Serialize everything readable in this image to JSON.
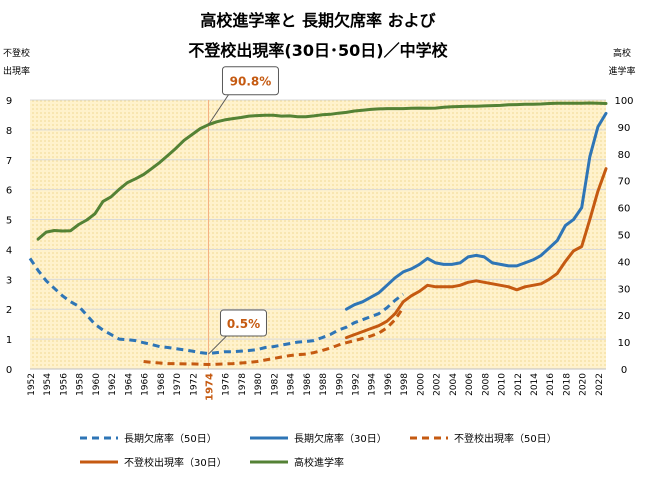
{
  "chart_data": {
    "type": "line",
    "title_line1": "高校進学率と 長期欠席率 および",
    "title_line2": "不登校出現率(30日･50日)／中学校",
    "left_axis_label": [
      "不登校",
      "出現率"
    ],
    "right_axis_label": [
      "高校",
      "進学率"
    ],
    "y_left": {
      "min": 0,
      "max": 9,
      "ticks": [
        "0",
        "1",
        "2",
        "3",
        "4",
        "5",
        "6",
        "7",
        "8",
        "9"
      ]
    },
    "y_right": {
      "min": 0,
      "max": 100,
      "ticks": [
        "0",
        "10",
        "20",
        "30",
        "40",
        "50",
        "60",
        "70",
        "80",
        "90",
        "100"
      ]
    },
    "x_range": [
      1952,
      2023
    ],
    "x_ticks": [
      "1952",
      "1954",
      "1956",
      "1958",
      "1960",
      "1962",
      "1964",
      "1966",
      "1968",
      "1970",
      "1972",
      "1974",
      "1976",
      "1978",
      "1980",
      "1982",
      "1984",
      "1986",
      "1988",
      "1990",
      "1992",
      "1994",
      "1996",
      "1998",
      "2000",
      "2002",
      "2004",
      "2006",
      "2008",
      "2010",
      "2012",
      "2014",
      "2016",
      "2018",
      "2020",
      "2022"
    ],
    "highlight_year": "1974",
    "annotations": [
      {
        "text": "90.8%",
        "year": 1974,
        "axis": "right",
        "value": 90.8,
        "color": "#c55a11"
      },
      {
        "text": "0.5%",
        "year": 1974,
        "axis": "left",
        "value": 0.5,
        "color": "#c55a11"
      }
    ],
    "grid": true,
    "legend_placement": "bottom",
    "series": [
      {
        "name": "長期欠席率（50日）",
        "color": "#2e75b6",
        "dashed": true,
        "axis": "left",
        "x": [
          1952,
          1953,
          1954,
          1955,
          1956,
          1957,
          1958,
          1959,
          1960,
          1961,
          1962,
          1963,
          1964,
          1965,
          1966,
          1967,
          1968,
          1969,
          1970,
          1971,
          1972,
          1973,
          1974,
          1975,
          1976,
          1977,
          1978,
          1979,
          1980,
          1981,
          1982,
          1983,
          1984,
          1985,
          1986,
          1987,
          1988,
          1989,
          1990,
          1991,
          1992,
          1993,
          1994,
          1995,
          1996,
          1997,
          1998
        ],
        "y": [
          3.7,
          3.3,
          2.95,
          2.7,
          2.45,
          2.25,
          2.1,
          1.8,
          1.5,
          1.3,
          1.15,
          1.0,
          0.98,
          0.95,
          0.88,
          0.82,
          0.75,
          0.72,
          0.68,
          0.64,
          0.6,
          0.55,
          0.52,
          0.55,
          0.58,
          0.58,
          0.6,
          0.62,
          0.65,
          0.72,
          0.75,
          0.8,
          0.85,
          0.9,
          0.92,
          0.95,
          1.05,
          1.15,
          1.3,
          1.4,
          1.55,
          1.65,
          1.75,
          1.85,
          2.05,
          2.3,
          2.5
        ]
      },
      {
        "name": "長期欠席率（30日）",
        "color": "#2e75b6",
        "dashed": false,
        "axis": "left",
        "x": [
          1991,
          1992,
          1993,
          1994,
          1995,
          1996,
          1997,
          1998,
          1999,
          2000,
          2001,
          2002,
          2003,
          2004,
          2005,
          2006,
          2007,
          2008,
          2009,
          2010,
          2011,
          2012,
          2013,
          2014,
          2015,
          2016,
          2017,
          2018,
          2019,
          2020,
          2021,
          2022,
          2023
        ],
        "y": [
          2.0,
          2.15,
          2.25,
          2.4,
          2.55,
          2.8,
          3.05,
          3.25,
          3.35,
          3.5,
          3.7,
          3.55,
          3.5,
          3.5,
          3.55,
          3.75,
          3.8,
          3.75,
          3.55,
          3.5,
          3.45,
          3.45,
          3.55,
          3.65,
          3.8,
          4.05,
          4.3,
          4.8,
          5.0,
          5.4,
          7.1,
          8.1,
          8.55
        ]
      },
      {
        "name": "不登校出現率（50日）",
        "color": "#c55a11",
        "dashed": true,
        "axis": "left",
        "x": [
          1966,
          1967,
          1968,
          1969,
          1970,
          1971,
          1972,
          1973,
          1974,
          1975,
          1976,
          1977,
          1978,
          1979,
          1980,
          1981,
          1982,
          1983,
          1984,
          1985,
          1986,
          1987,
          1988,
          1989,
          1990,
          1991,
          1992,
          1993,
          1994,
          1995,
          1996,
          1997,
          1998
        ],
        "y": [
          0.25,
          0.22,
          0.2,
          0.18,
          0.18,
          0.17,
          0.17,
          0.16,
          0.15,
          0.16,
          0.17,
          0.18,
          0.2,
          0.22,
          0.25,
          0.3,
          0.35,
          0.4,
          0.45,
          0.48,
          0.5,
          0.55,
          0.62,
          0.7,
          0.8,
          0.88,
          0.95,
          1.02,
          1.1,
          1.2,
          1.38,
          1.65,
          2.05
        ]
      },
      {
        "name": "不登校出現率（30日）",
        "color": "#c55a11",
        "dashed": false,
        "axis": "left",
        "x": [
          1991,
          1992,
          1993,
          1994,
          1995,
          1996,
          1997,
          1998,
          1999,
          2000,
          2001,
          2002,
          2003,
          2004,
          2005,
          2006,
          2007,
          2008,
          2009,
          2010,
          2011,
          2012,
          2013,
          2014,
          2015,
          2016,
          2017,
          2018,
          2019,
          2020,
          2021,
          2022,
          2023
        ],
        "y": [
          1.05,
          1.15,
          1.25,
          1.35,
          1.45,
          1.6,
          1.85,
          2.25,
          2.45,
          2.6,
          2.8,
          2.75,
          2.75,
          2.75,
          2.8,
          2.9,
          2.95,
          2.9,
          2.85,
          2.8,
          2.75,
          2.65,
          2.75,
          2.8,
          2.85,
          3.0,
          3.2,
          3.6,
          3.95,
          4.1,
          5.0,
          5.95,
          6.7
        ]
      },
      {
        "name": "高校進学率",
        "color": "#548235",
        "dashed": false,
        "axis": "right",
        "x": [
          1953,
          1954,
          1955,
          1956,
          1957,
          1958,
          1959,
          1960,
          1961,
          1962,
          1963,
          1964,
          1965,
          1966,
          1967,
          1968,
          1969,
          1970,
          1971,
          1972,
          1973,
          1974,
          1975,
          1976,
          1977,
          1978,
          1979,
          1980,
          1981,
          1982,
          1983,
          1984,
          1985,
          1986,
          1987,
          1988,
          1989,
          1990,
          1991,
          1992,
          1993,
          1994,
          1995,
          1996,
          1997,
          1998,
          1999,
          2000,
          2001,
          2002,
          2003,
          2004,
          2005,
          2006,
          2007,
          2008,
          2009,
          2010,
          2011,
          2012,
          2013,
          2014,
          2015,
          2016,
          2017,
          2018,
          2019,
          2020,
          2021,
          2022,
          2023
        ],
        "y": [
          48.3,
          50.9,
          51.5,
          51.3,
          51.4,
          53.7,
          55.4,
          57.7,
          62.3,
          64.0,
          66.8,
          69.3,
          70.7,
          72.3,
          74.5,
          76.8,
          79.4,
          82.1,
          85.0,
          87.2,
          89.4,
          90.8,
          91.9,
          92.6,
          93.1,
          93.5,
          94.0,
          94.2,
          94.3,
          94.3,
          94.0,
          94.1,
          93.8,
          93.8,
          94.1,
          94.5,
          94.7,
          95.1,
          95.4,
          95.9,
          96.2,
          96.5,
          96.7,
          96.8,
          96.8,
          96.8,
          96.9,
          97.0,
          96.9,
          97.0,
          97.3,
          97.5,
          97.6,
          97.7,
          97.7,
          97.8,
          97.9,
          98.0,
          98.2,
          98.3,
          98.4,
          98.4,
          98.5,
          98.7,
          98.8,
          98.8,
          98.8,
          98.8,
          98.9,
          98.8,
          98.7
        ]
      }
    ]
  }
}
